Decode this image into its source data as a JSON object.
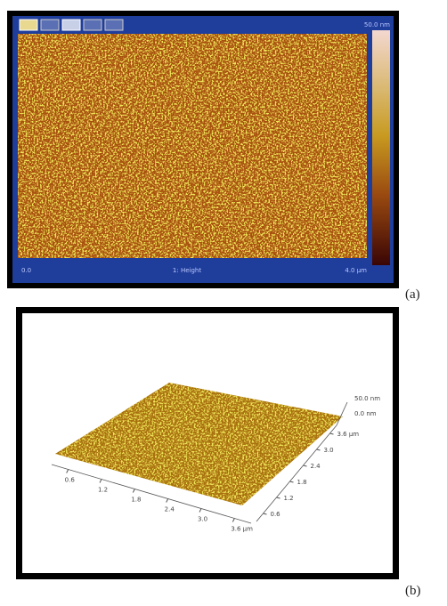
{
  "panel_a": {
    "scale_max": "50.0 nm",
    "x_start": "0.0",
    "channel": "1: Height",
    "x_end": "4.0 µm",
    "label": "(a)"
  },
  "panel_b": {
    "z_max": "50.0 nm",
    "z_min": "0.0 nm",
    "x_ticks": [
      "0.6",
      "1.2",
      "1.8",
      "2.4",
      "3.0",
      "3.6 µm"
    ],
    "y_ticks": [
      "3.6 µm",
      "3.0",
      "2.4",
      "1.8",
      "1.2",
      "0.6"
    ],
    "label": "(b)"
  }
}
